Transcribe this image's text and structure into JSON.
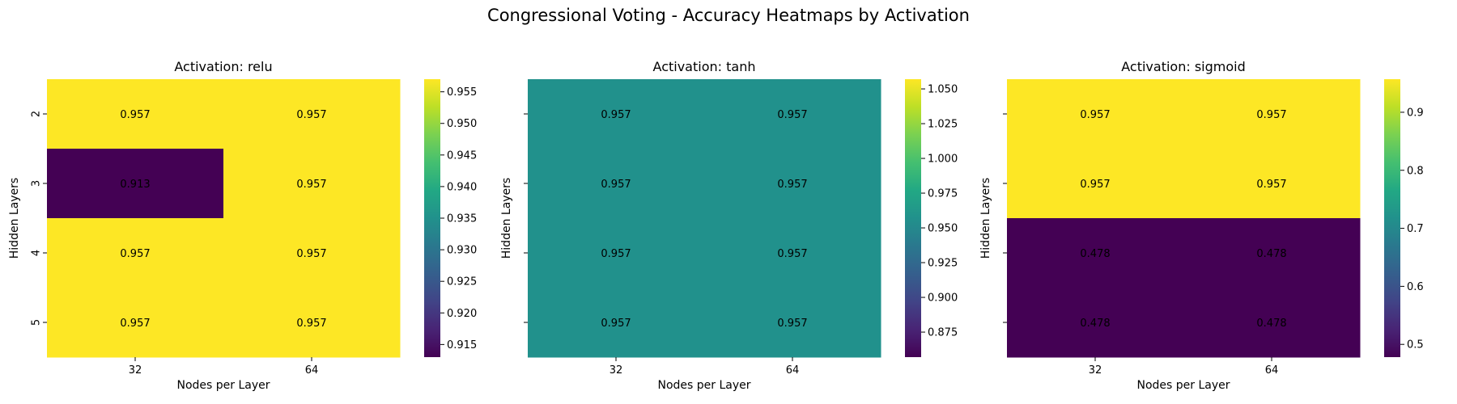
{
  "title": "Congressional Voting - Accuracy Heatmaps by Activation",
  "chart_data": [
    {
      "type": "heatmap",
      "title": "Activation: relu",
      "xlabel": "Nodes per Layer",
      "ylabel": "Hidden Layers",
      "x_categories": [
        "32",
        "64"
      ],
      "y_categories": [
        "2",
        "3",
        "4",
        "5"
      ],
      "values": [
        [
          0.957,
          0.957
        ],
        [
          0.913,
          0.957
        ],
        [
          0.957,
          0.957
        ],
        [
          0.957,
          0.957
        ]
      ],
      "colorbar": {
        "range": [
          0.913,
          0.957
        ],
        "ticks": [
          0.915,
          0.92,
          0.925,
          0.93,
          0.935,
          0.94,
          0.945,
          0.95,
          0.955
        ],
        "tick_labels": [
          "0.915",
          "0.920",
          "0.925",
          "0.930",
          "0.935",
          "0.940",
          "0.945",
          "0.950",
          "0.955"
        ]
      },
      "show_ytick_labels": true,
      "colormap": "viridis"
    },
    {
      "type": "heatmap",
      "title": "Activation: tanh",
      "xlabel": "Nodes per Layer",
      "ylabel": "Hidden Layers",
      "x_categories": [
        "32",
        "64"
      ],
      "y_categories": [
        "2",
        "3",
        "4",
        "5"
      ],
      "values": [
        [
          0.957,
          0.957
        ],
        [
          0.957,
          0.957
        ],
        [
          0.957,
          0.957
        ],
        [
          0.957,
          0.957
        ]
      ],
      "colorbar": {
        "range": [
          0.857,
          1.057
        ],
        "ticks": [
          0.875,
          0.9,
          0.925,
          0.95,
          0.975,
          1.0,
          1.025,
          1.05
        ],
        "tick_labels": [
          "0.875",
          "0.900",
          "0.925",
          "0.950",
          "0.975",
          "1.000",
          "1.025",
          "1.050"
        ]
      },
      "show_ytick_labels": false,
      "colormap": "viridis"
    },
    {
      "type": "heatmap",
      "title": "Activation: sigmoid",
      "xlabel": "Nodes per Layer",
      "ylabel": "Hidden Layers",
      "x_categories": [
        "32",
        "64"
      ],
      "y_categories": [
        "2",
        "3",
        "4",
        "5"
      ],
      "values": [
        [
          0.957,
          0.957
        ],
        [
          0.957,
          0.957
        ],
        [
          0.478,
          0.478
        ],
        [
          0.478,
          0.478
        ]
      ],
      "colorbar": {
        "range": [
          0.478,
          0.957
        ],
        "ticks": [
          0.5,
          0.6,
          0.7,
          0.8,
          0.9
        ],
        "tick_labels": [
          "0.5",
          "0.6",
          "0.7",
          "0.8",
          "0.9"
        ]
      },
      "show_ytick_labels": false,
      "colormap": "viridis"
    }
  ]
}
